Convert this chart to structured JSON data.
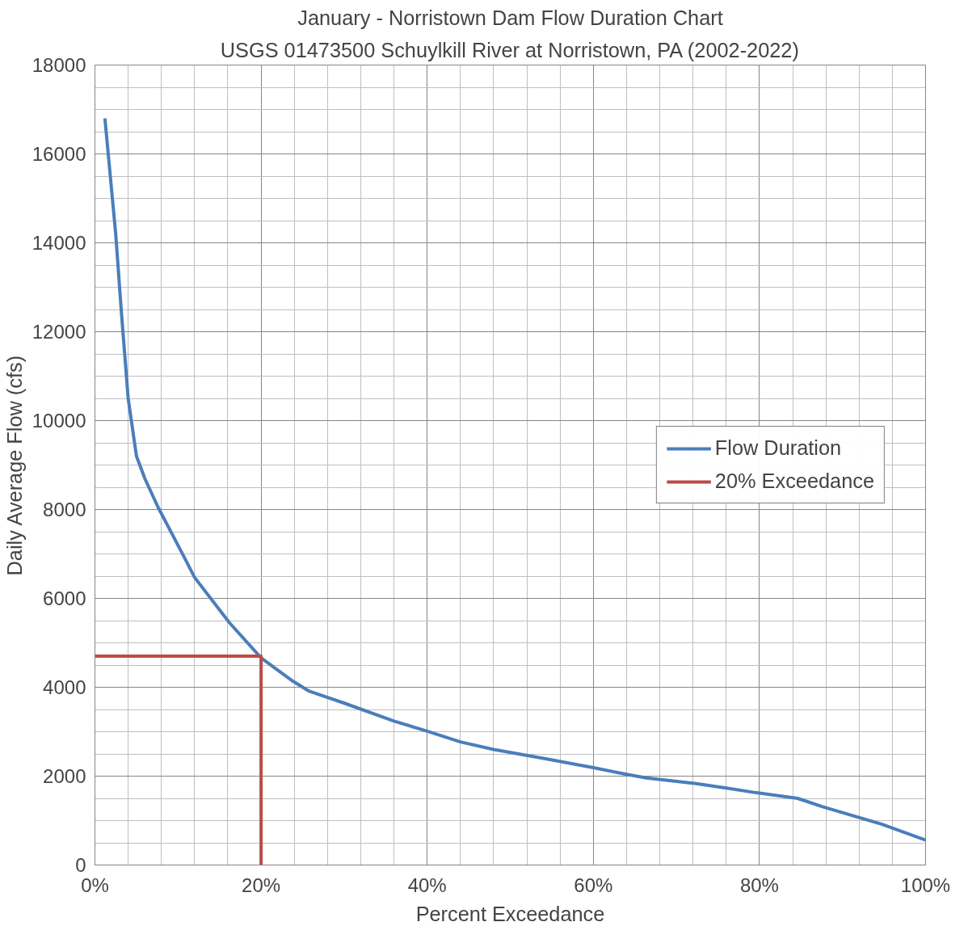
{
  "chart_data": {
    "type": "line",
    "title": "January - Norristown Dam Flow Duration Chart",
    "subtitle": "USGS 01473500 Schuylkill River at Norristown, PA (2002-2022)",
    "xlabel": "Percent Exceedance",
    "ylabel": "Daily Average Flow (cfs)",
    "xlim": [
      0,
      100
    ],
    "ylim": [
      0,
      18000
    ],
    "xticks": [
      {
        "value": 0,
        "label": "0%"
      },
      {
        "value": 20,
        "label": "20%"
      },
      {
        "value": 40,
        "label": "40%"
      },
      {
        "value": 60,
        "label": "60%"
      },
      {
        "value": 80,
        "label": "80%"
      },
      {
        "value": 100,
        "label": "100%"
      }
    ],
    "yticks": [
      0,
      2000,
      4000,
      6000,
      8000,
      10000,
      12000,
      14000,
      16000,
      18000
    ],
    "grid": true,
    "legend": "right",
    "line_style": "solid",
    "marker": "none",
    "series": [
      {
        "name": "Flow Duration",
        "color": "#4a7ebb",
        "x": [
          1.2,
          2.5,
          3.2,
          4,
          5,
          6,
          7.6,
          10.6,
          12,
          16.2,
          20,
          23.8,
          25.8,
          29.9,
          36,
          40,
          44,
          48,
          54,
          60,
          64,
          66.4,
          72.4,
          76.5,
          79.5,
          84.6,
          87.6,
          94.7,
          100
        ],
        "values": [
          16800,
          14200,
          12400,
          10500,
          9200,
          8700,
          8050,
          6980,
          6470,
          5450,
          4660,
          4140,
          3910,
          3650,
          3240,
          3010,
          2770,
          2600,
          2400,
          2190,
          2040,
          1960,
          1830,
          1720,
          1630,
          1500,
          1310,
          920,
          560
        ]
      },
      {
        "name": "20% Exceedance",
        "color": "#be4b48",
        "x": [
          0,
          20,
          20
        ],
        "values": [
          4700,
          4700,
          0
        ]
      }
    ]
  }
}
